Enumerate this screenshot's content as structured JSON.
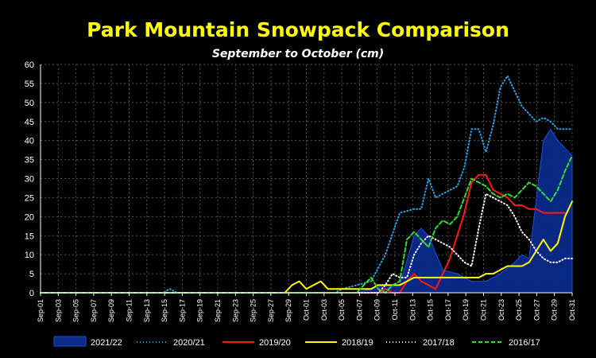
{
  "chart_data": {
    "type": "line",
    "title": "Park Mountain Snowpack Comparison",
    "subtitle": "September to October  (cm)",
    "ylim": [
      0,
      60
    ],
    "yticks": [
      0,
      5,
      10,
      15,
      20,
      25,
      30,
      35,
      40,
      45,
      50,
      55,
      60
    ],
    "grid": true,
    "legend_position": "bottom",
    "categories": [
      "Sep-01",
      "Sep-03",
      "Sep-05",
      "Sep-07",
      "Sep-09",
      "Sep-11",
      "Sep-13",
      "Sep-15",
      "Sep-17",
      "Sep-19",
      "Sep-21",
      "Sep-23",
      "Sep-25",
      "Sep-27",
      "Sep-29",
      "Oct-01",
      "Oct-03",
      "Oct-05",
      "Oct-07",
      "Oct-09",
      "Oct-11",
      "Oct-13",
      "Oct-15",
      "Oct-17",
      "Oct-19",
      "Oct-21",
      "Oct-23",
      "Oct-25",
      "Oct-27",
      "Oct-29",
      "Oct-31"
    ],
    "series": [
      {
        "name": "2021/22",
        "style": "area",
        "color": "#0a2a8a",
        "points": [
          [
            0,
            0
          ],
          [
            44,
            0
          ],
          [
            46,
            1
          ],
          [
            48,
            2
          ],
          [
            50,
            2
          ],
          [
            52,
            15
          ],
          [
            53,
            17
          ],
          [
            54,
            15
          ],
          [
            56,
            6
          ],
          [
            58,
            5
          ],
          [
            60,
            3
          ],
          [
            62,
            3
          ],
          [
            64,
            5
          ],
          [
            66,
            8
          ],
          [
            67,
            10
          ],
          [
            68,
            9
          ],
          [
            70,
            40
          ],
          [
            71,
            43
          ],
          [
            72,
            40
          ],
          [
            73,
            38
          ],
          [
            74,
            36
          ],
          [
            74,
            0
          ]
        ]
      },
      {
        "name": "2020/21",
        "style": "dotted",
        "color": "#2aa4e8",
        "points": [
          [
            0,
            0
          ],
          [
            17,
            0
          ],
          [
            18,
            1
          ],
          [
            19,
            0
          ],
          [
            41,
            0
          ],
          [
            42,
            1
          ],
          [
            44,
            2
          ],
          [
            46,
            3
          ],
          [
            48,
            10
          ],
          [
            50,
            21
          ],
          [
            52,
            22
          ],
          [
            53,
            22
          ],
          [
            54,
            30
          ],
          [
            55,
            25
          ],
          [
            56,
            26
          ],
          [
            57,
            27
          ],
          [
            58,
            28
          ],
          [
            59,
            33
          ],
          [
            60,
            43
          ],
          [
            61,
            43
          ],
          [
            62,
            37
          ],
          [
            63,
            44
          ],
          [
            64,
            54
          ],
          [
            65,
            57
          ],
          [
            66,
            53
          ],
          [
            67,
            49
          ],
          [
            68,
            47
          ],
          [
            69,
            45
          ],
          [
            70,
            46
          ],
          [
            71,
            45
          ],
          [
            72,
            43
          ],
          [
            73,
            43
          ],
          [
            74,
            43
          ]
        ]
      },
      {
        "name": "2019/20",
        "style": "solid",
        "color": "#ff1a1a",
        "points": [
          [
            0,
            0
          ],
          [
            47,
            0
          ],
          [
            48,
            1
          ],
          [
            49,
            0
          ],
          [
            50,
            0
          ],
          [
            51,
            3
          ],
          [
            52,
            5
          ],
          [
            53,
            3
          ],
          [
            54,
            2
          ],
          [
            55,
            1
          ],
          [
            56,
            5
          ],
          [
            57,
            9
          ],
          [
            58,
            15
          ],
          [
            59,
            21
          ],
          [
            60,
            29
          ],
          [
            61,
            31
          ],
          [
            62,
            31
          ],
          [
            63,
            27
          ],
          [
            64,
            26
          ],
          [
            65,
            25
          ],
          [
            66,
            23
          ],
          [
            67,
            23
          ],
          [
            68,
            22
          ],
          [
            69,
            22
          ],
          [
            70,
            21
          ],
          [
            71,
            21
          ],
          [
            72,
            21
          ],
          [
            73,
            21
          ]
        ]
      },
      {
        "name": "2018/19",
        "style": "solid",
        "color": "#ffff00",
        "points": [
          [
            0,
            0
          ],
          [
            34,
            0
          ],
          [
            35,
            2
          ],
          [
            36,
            3
          ],
          [
            37,
            1
          ],
          [
            38,
            2
          ],
          [
            39,
            3
          ],
          [
            40,
            1
          ],
          [
            41,
            1
          ],
          [
            42,
            1
          ],
          [
            43,
            1
          ],
          [
            44,
            1
          ],
          [
            45,
            1
          ],
          [
            46,
            1
          ],
          [
            47,
            2
          ],
          [
            48,
            2
          ],
          [
            49,
            2
          ],
          [
            50,
            2
          ],
          [
            51,
            3
          ],
          [
            52,
            4
          ],
          [
            53,
            4
          ],
          [
            54,
            4
          ],
          [
            55,
            4
          ],
          [
            56,
            4
          ],
          [
            57,
            4
          ],
          [
            58,
            4
          ],
          [
            59,
            4
          ],
          [
            60,
            4
          ],
          [
            61,
            4
          ],
          [
            62,
            5
          ],
          [
            63,
            5
          ],
          [
            64,
            6
          ],
          [
            65,
            7
          ],
          [
            66,
            7
          ],
          [
            67,
            7
          ],
          [
            68,
            8
          ],
          [
            69,
            11
          ],
          [
            70,
            14
          ],
          [
            71,
            11
          ],
          [
            72,
            13
          ],
          [
            73,
            20
          ],
          [
            74,
            24
          ]
        ]
      },
      {
        "name": "2017/18",
        "style": "dotted",
        "color": "#ffffff",
        "points": [
          [
            0,
            0
          ],
          [
            47,
            0
          ],
          [
            48,
            2
          ],
          [
            49,
            5
          ],
          [
            50,
            4
          ],
          [
            51,
            4
          ],
          [
            52,
            10
          ],
          [
            53,
            13
          ],
          [
            54,
            15
          ],
          [
            55,
            14
          ],
          [
            56,
            13
          ],
          [
            57,
            12
          ],
          [
            58,
            10
          ],
          [
            59,
            8
          ],
          [
            60,
            7
          ],
          [
            61,
            17
          ],
          [
            62,
            26
          ],
          [
            63,
            25
          ],
          [
            64,
            24
          ],
          [
            65,
            23
          ],
          [
            66,
            20
          ],
          [
            67,
            16
          ],
          [
            68,
            14
          ],
          [
            69,
            11
          ],
          [
            70,
            9
          ],
          [
            71,
            8
          ],
          [
            72,
            8
          ],
          [
            73,
            9
          ],
          [
            74,
            9
          ]
        ]
      },
      {
        "name": "2016/17",
        "style": "dashed",
        "color": "#33dd33",
        "points": [
          [
            0,
            0
          ],
          [
            44,
            0
          ],
          [
            45,
            2
          ],
          [
            46,
            4
          ],
          [
            47,
            1
          ],
          [
            48,
            0
          ],
          [
            49,
            2
          ],
          [
            50,
            3
          ],
          [
            51,
            14
          ],
          [
            52,
            16
          ],
          [
            53,
            14
          ],
          [
            54,
            12
          ],
          [
            55,
            17
          ],
          [
            56,
            19
          ],
          [
            57,
            18
          ],
          [
            58,
            20
          ],
          [
            59,
            25
          ],
          [
            60,
            30
          ],
          [
            61,
            29
          ],
          [
            62,
            28
          ],
          [
            63,
            26
          ],
          [
            64,
            25
          ],
          [
            65,
            26
          ],
          [
            66,
            25
          ],
          [
            67,
            27
          ],
          [
            68,
            29
          ],
          [
            69,
            28
          ],
          [
            70,
            26
          ],
          [
            71,
            24
          ],
          [
            72,
            27
          ],
          [
            73,
            32
          ],
          [
            74,
            36
          ]
        ]
      }
    ]
  }
}
